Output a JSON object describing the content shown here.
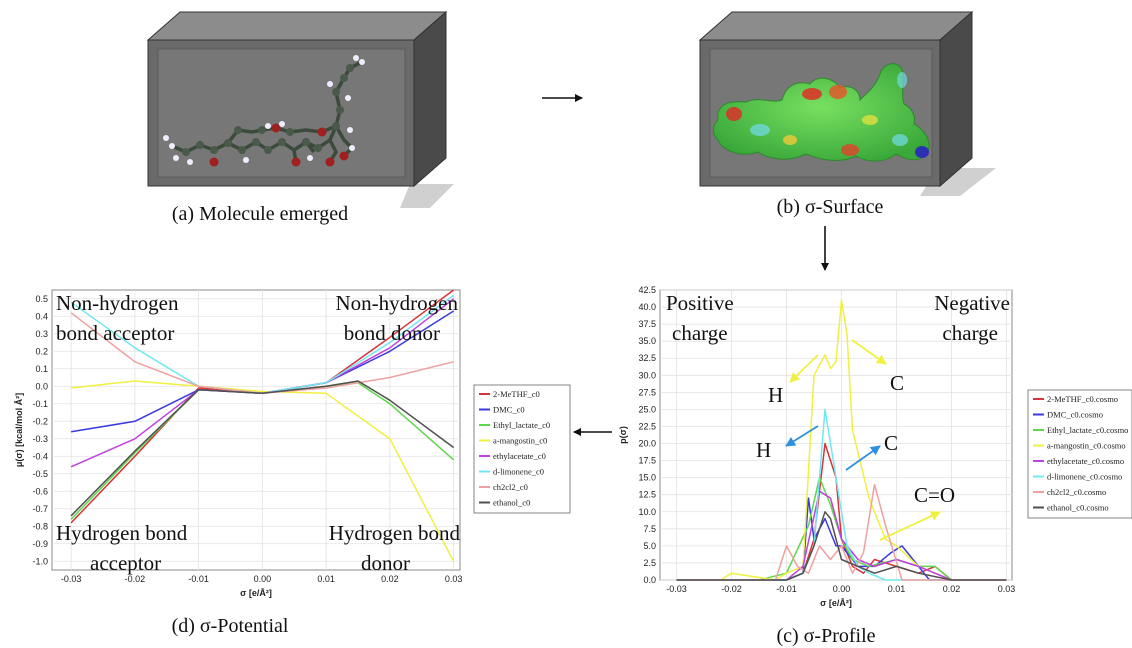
{
  "captions": {
    "a": "(a) Molecule emerged",
    "b": "(b) σ-Surface",
    "c": "(c) σ-Profile",
    "d": "(d) σ-Potential"
  },
  "potential_annotations": {
    "top_left": [
      "Non-hydrogen",
      "bond acceptor"
    ],
    "top_right": [
      "Non-hydrogen",
      "bond donor"
    ],
    "bottom_left": [
      "Hydrogen bond",
      "acceptor"
    ],
    "bottom_right": [
      "Hydrogen bond",
      "donor"
    ]
  },
  "profile_annotations": {
    "positive": [
      "Positive",
      "charge"
    ],
    "negative": [
      "Negative",
      "charge"
    ],
    "H1": "H",
    "H2": "H",
    "C1": "C",
    "C2": "C",
    "CO": "C=O"
  },
  "colors": {
    "series": [
      "#d8343a",
      "#3a3ae0",
      "#5cd84a",
      "#f0f040",
      "#c040e0",
      "#70e8f0",
      "#f0a0a0",
      "#505050"
    ],
    "arrow_yellow": "#f0f040",
    "arrow_blue": "#3090e0",
    "box_front": "#6a6a6a",
    "box_top": "#8c8c8c",
    "box_side": "#4a4a4a",
    "surface_green": "#50c850"
  },
  "chart_data": [
    {
      "type": "line",
      "xlabel": "σ [e/Å²]",
      "ylabel": "μ(σ) [kcal/mol Å²]",
      "xlim": [
        -0.033,
        0.031
      ],
      "ylim": [
        -1.05,
        0.55
      ],
      "xticks": [
        "-0.03",
        "-0.02",
        "-0.01",
        "0.00",
        "0.01",
        "0.02",
        "0.03"
      ],
      "yticks": [
        "0.5",
        "0.4",
        "0.3",
        "0.2",
        "0.1",
        "0.0",
        "-0.1",
        "-0.2",
        "-0.3",
        "-0.4",
        "-0.5",
        "-0.6",
        "-0.7",
        "-0.8",
        "-0.9",
        "-1.0"
      ],
      "grid": true,
      "legend_position": "right",
      "series": [
        {
          "name": "2-MeTHF_c0",
          "x": [
            -0.03,
            -0.02,
            -0.01,
            0.0,
            0.01,
            0.02,
            0.03
          ],
          "y": [
            -0.78,
            -0.4,
            -0.01,
            -0.04,
            0.02,
            0.28,
            0.55
          ]
        },
        {
          "name": "DMC_c0",
          "x": [
            -0.03,
            -0.02,
            -0.01,
            0.0,
            0.01,
            0.02,
            0.03
          ],
          "y": [
            -0.26,
            -0.2,
            -0.02,
            -0.04,
            0.02,
            0.2,
            0.43
          ]
        },
        {
          "name": "Ethyl_lactate_c0",
          "x": [
            -0.03,
            -0.02,
            -0.01,
            0.0,
            0.01,
            0.015,
            0.02,
            0.03
          ],
          "y": [
            -0.76,
            -0.38,
            -0.02,
            -0.04,
            0.0,
            0.02,
            -0.1,
            -0.42
          ]
        },
        {
          "name": "a-mangostin_c0",
          "x": [
            -0.03,
            -0.02,
            -0.01,
            0.0,
            0.01,
            0.02,
            0.03
          ],
          "y": [
            -0.01,
            0.03,
            0.0,
            -0.03,
            -0.04,
            -0.3,
            -1.0
          ]
        },
        {
          "name": "ethylacetate_c0",
          "x": [
            -0.03,
            -0.02,
            -0.01,
            0.0,
            0.01,
            0.02,
            0.03
          ],
          "y": [
            -0.46,
            -0.3,
            -0.02,
            -0.04,
            0.02,
            0.22,
            0.5
          ]
        },
        {
          "name": "d-limonene_c0",
          "x": [
            -0.03,
            -0.02,
            -0.01,
            0.0,
            0.01,
            0.02,
            0.03
          ],
          "y": [
            0.48,
            0.22,
            0.0,
            -0.04,
            0.02,
            0.25,
            0.52
          ]
        },
        {
          "name": "ch2cl2_c0",
          "x": [
            -0.03,
            -0.02,
            -0.01,
            0.0,
            0.01,
            0.02,
            0.03
          ],
          "y": [
            0.42,
            0.14,
            0.0,
            -0.04,
            -0.01,
            0.05,
            0.14
          ]
        },
        {
          "name": "ethanol_c0",
          "x": [
            -0.03,
            -0.02,
            -0.01,
            0.0,
            0.01,
            0.015,
            0.02,
            0.03
          ],
          "y": [
            -0.74,
            -0.37,
            -0.02,
            -0.04,
            0.0,
            0.03,
            -0.08,
            -0.35
          ]
        }
      ]
    },
    {
      "type": "line",
      "xlabel": "σ [e/Å²]",
      "ylabel": "p(σ)",
      "xlim": [
        -0.033,
        0.031
      ],
      "ylim": [
        0,
        42.5
      ],
      "xticks": [
        "-0.03",
        "-0.02",
        "-0.01",
        "0.00",
        "0.01",
        "0.02",
        "0.03"
      ],
      "yticks": [
        "42.5",
        "40.0",
        "37.5",
        "35.0",
        "32.5",
        "30.0",
        "27.5",
        "25.0",
        "22.5",
        "20.0",
        "17.5",
        "15.0",
        "12.5",
        "10.0",
        "7.5",
        "5.0",
        "2.5",
        "0.0"
      ],
      "grid": true,
      "legend_position": "right",
      "series": [
        {
          "name": "2-MeTHF_c0.cosmo",
          "x": [
            -0.03,
            -0.01,
            -0.007,
            -0.005,
            -0.003,
            -0.001,
            0.0,
            0.002,
            0.004,
            0.006,
            0.01,
            0.014,
            0.017,
            0.02,
            0.03
          ],
          "y": [
            0,
            0,
            1,
            6,
            20,
            15,
            6,
            2,
            1,
            3,
            2,
            1,
            2,
            0,
            0
          ]
        },
        {
          "name": "DMC_c0.cosmo",
          "x": [
            -0.03,
            -0.01,
            -0.007,
            -0.006,
            -0.005,
            -0.003,
            -0.001,
            0.0,
            0.003,
            0.006,
            0.009,
            0.011,
            0.013,
            0.016,
            0.02,
            0.03
          ],
          "y": [
            0,
            0,
            1,
            12,
            6,
            9,
            5,
            5,
            2,
            2,
            4,
            5,
            3,
            0,
            0,
            0
          ]
        },
        {
          "name": "Ethyl_lactate_c0.cosmo",
          "x": [
            -0.03,
            -0.015,
            -0.01,
            -0.006,
            -0.004,
            -0.002,
            0.0,
            0.002,
            0.005,
            0.01,
            0.014,
            0.017,
            0.02,
            0.03
          ],
          "y": [
            0,
            0,
            1,
            8,
            15,
            11,
            6,
            3,
            2,
            3,
            2,
            2,
            0,
            0
          ]
        },
        {
          "name": "a-mangostin_c0.cosmo",
          "x": [
            -0.03,
            -0.022,
            -0.02,
            -0.012,
            -0.01,
            -0.007,
            -0.005,
            -0.003,
            -0.002,
            -0.001,
            0.0,
            0.001,
            0.002,
            0.005,
            0.008,
            0.01,
            0.014,
            0.02,
            0.03
          ],
          "y": [
            0,
            0,
            1,
            0,
            1,
            2,
            30,
            33,
            31,
            32,
            41,
            36,
            22,
            12,
            6,
            5,
            2,
            0,
            0
          ]
        },
        {
          "name": "ethylacetate_c0.cosmo",
          "x": [
            -0.03,
            -0.01,
            -0.007,
            -0.004,
            -0.002,
            0.0,
            0.003,
            0.006,
            0.01,
            0.014,
            0.02,
            0.03
          ],
          "y": [
            0,
            0,
            2,
            13,
            12,
            6,
            3,
            2,
            3,
            2,
            0,
            0
          ]
        },
        {
          "name": "d-limonene_c0.cosmo",
          "x": [
            -0.03,
            -0.01,
            -0.007,
            -0.005,
            -0.003,
            -0.001,
            0.0,
            0.001,
            0.003,
            0.005,
            0.008,
            0.01,
            0.03
          ],
          "y": [
            0,
            0,
            1,
            5,
            25,
            15,
            10,
            5,
            2,
            1,
            0,
            0,
            0
          ]
        },
        {
          "name": "ch2cl2_c0.cosmo",
          "x": [
            -0.03,
            -0.012,
            -0.01,
            -0.008,
            -0.006,
            -0.004,
            -0.002,
            0.0,
            0.002,
            0.004,
            0.006,
            0.008,
            0.011,
            0.03
          ],
          "y": [
            0,
            0,
            5,
            2,
            1,
            5,
            3,
            5,
            1,
            4,
            14,
            8,
            0,
            0
          ]
        },
        {
          "name": "ethanol_c0.cosmo",
          "x": [
            -0.03,
            -0.01,
            -0.007,
            -0.005,
            -0.003,
            -0.002,
            -0.001,
            0.0,
            0.003,
            0.006,
            0.01,
            0.014,
            0.02,
            0.03
          ],
          "y": [
            0,
            0,
            1,
            5,
            10,
            9,
            6,
            3,
            2,
            1,
            2,
            1,
            0,
            0
          ]
        }
      ]
    }
  ]
}
